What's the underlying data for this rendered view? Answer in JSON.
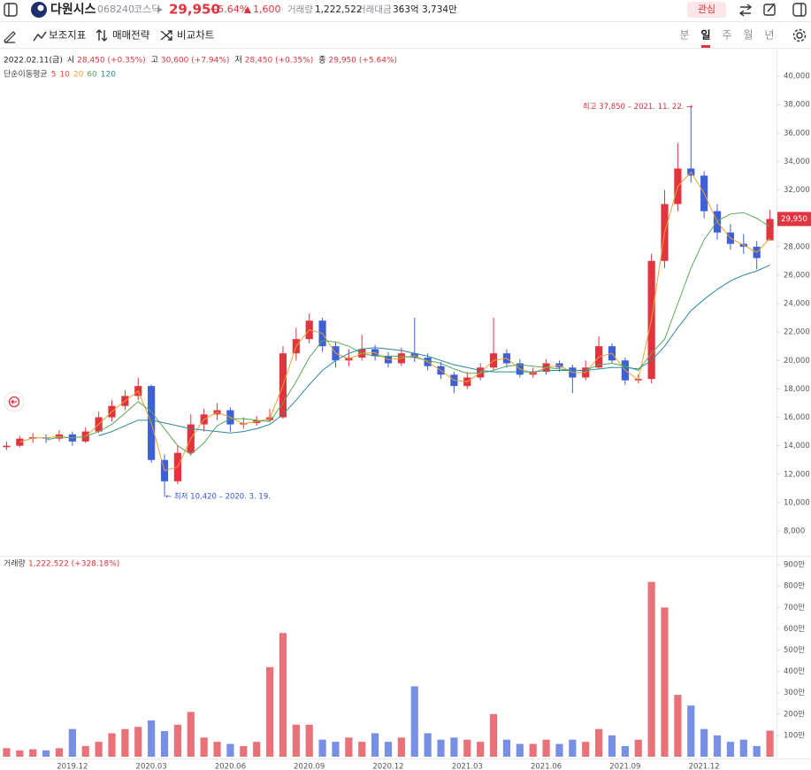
{
  "header": {
    "name": "다원시스",
    "code": "068240",
    "market": "코스닥",
    "price": "29,950",
    "change_pct": "+5.64%",
    "change": "1,600",
    "volume_label": "거래량",
    "volume": "1,222,522",
    "amount_label": "거래대금",
    "amount": "363억 3,734만",
    "watch": "관심"
  },
  "toolbar": {
    "tools": [
      "보조지표",
      "매매전략",
      "비교차트"
    ],
    "periods": [
      "분",
      "일",
      "주",
      "월",
      "년"
    ],
    "active_period": 1
  },
  "chart_data": {
    "type": "candlestick",
    "date": "2022.02.11(금)",
    "ohlc_info": [
      {
        "label": "시",
        "value": "28,450 (+0.35%)"
      },
      {
        "label": "고",
        "value": "30,600 (+7.94%)"
      },
      {
        "label": "저",
        "value": "28,450 (+0.35%)"
      },
      {
        "label": "종",
        "value": "29,950 (+5.64%)"
      }
    ],
    "up_color": "#e0353f",
    "down_color": "#3d5fd8",
    "categories": [
      null,
      null,
      null,
      null,
      null,
      "2019.12",
      null,
      null,
      null,
      null,
      null,
      "2020.03",
      null,
      null,
      null,
      null,
      null,
      "2020.06",
      null,
      null,
      null,
      null,
      null,
      "2020.09",
      null,
      null,
      null,
      null,
      null,
      "2020.12",
      null,
      null,
      null,
      null,
      null,
      "2021.03",
      null,
      null,
      null,
      null,
      null,
      "2021.06",
      null,
      null,
      null,
      null,
      null,
      "2021.09",
      null,
      null,
      null,
      null,
      null,
      "2021.12",
      null,
      null,
      null,
      null,
      null
    ],
    "ohlc": [
      [
        13900,
        14300,
        13700,
        14000
      ],
      [
        14000,
        14700,
        13900,
        14500
      ],
      [
        14500,
        14900,
        14200,
        14600
      ],
      [
        14600,
        14800,
        14200,
        14500
      ],
      [
        14500,
        15100,
        14300,
        14800
      ],
      [
        14800,
        15000,
        14000,
        14300
      ],
      [
        14300,
        15300,
        14200,
        15000
      ],
      [
        15000,
        16400,
        14900,
        16000
      ],
      [
        16000,
        17200,
        15700,
        16800
      ],
      [
        16800,
        17900,
        16500,
        17500
      ],
      [
        17500,
        18800,
        17200,
        18200
      ],
      [
        18200,
        18300,
        12800,
        13000
      ],
      [
        13000,
        13400,
        10420,
        11500
      ],
      [
        11500,
        14000,
        11300,
        13500
      ],
      [
        13500,
        16200,
        13300,
        15500
      ],
      [
        15500,
        16600,
        15000,
        16200
      ],
      [
        16200,
        17000,
        15800,
        16500
      ],
      [
        16500,
        16700,
        15000,
        15500
      ],
      [
        15500,
        16000,
        15200,
        15600
      ],
      [
        15600,
        16100,
        15400,
        15800
      ],
      [
        15800,
        16600,
        15700,
        16000
      ],
      [
        16000,
        21000,
        15900,
        20500
      ],
      [
        20500,
        22300,
        20000,
        21500
      ],
      [
        21500,
        23300,
        21200,
        22800
      ],
      [
        22800,
        23000,
        20600,
        21000
      ],
      [
        21000,
        21300,
        19500,
        20000
      ],
      [
        20000,
        20800,
        19600,
        20200
      ],
      [
        20200,
        21800,
        20000,
        20800
      ],
      [
        20800,
        21100,
        20000,
        20300
      ],
      [
        20300,
        20600,
        19500,
        19800
      ],
      [
        19800,
        20900,
        19600,
        20500
      ],
      [
        20500,
        23000,
        19900,
        20200
      ],
      [
        20200,
        20500,
        19300,
        19600
      ],
      [
        19600,
        19900,
        18700,
        19000
      ],
      [
        19000,
        19200,
        17700,
        18200
      ],
      [
        18200,
        19200,
        18000,
        18800
      ],
      [
        18800,
        19800,
        18600,
        19500
      ],
      [
        19500,
        23000,
        19300,
        20500
      ],
      [
        20500,
        20800,
        19500,
        19800
      ],
      [
        19800,
        20100,
        18800,
        19000
      ],
      [
        19000,
        19500,
        18800,
        19200
      ],
      [
        19200,
        20100,
        19000,
        19800
      ],
      [
        19800,
        20000,
        19200,
        19500
      ],
      [
        19500,
        19700,
        17700,
        18800
      ],
      [
        18800,
        20000,
        18600,
        19500
      ],
      [
        19500,
        21700,
        19400,
        21000
      ],
      [
        21000,
        21200,
        19800,
        20000
      ],
      [
        20000,
        20200,
        18300,
        18600
      ],
      [
        18600,
        19000,
        18400,
        18700
      ],
      [
        18700,
        27500,
        18400,
        27000
      ],
      [
        27000,
        32000,
        26500,
        31000
      ],
      [
        31000,
        35300,
        30500,
        33500
      ],
      [
        33500,
        37850,
        32500,
        33000
      ],
      [
        33000,
        33300,
        30000,
        30500
      ],
      [
        30500,
        31000,
        28500,
        29000
      ],
      [
        29000,
        29600,
        27800,
        28200
      ],
      [
        28200,
        28900,
        27500,
        28000
      ],
      [
        28000,
        28400,
        26400,
        27200
      ],
      [
        28450,
        30600,
        28450,
        29950
      ]
    ],
    "ma_label": "단순이동평균",
    "ma_legend_extra": [
      {
        "name": "5",
        "color": "#e53935"
      },
      {
        "name": "10",
        "color": "#f4511e"
      }
    ],
    "ma_series": [
      {
        "name": "20",
        "color": "#f0a030",
        "values": [
          null,
          14250,
          14550,
          14550,
          14650,
          14550,
          14650,
          15500,
          16400,
          17150,
          17850,
          15600,
          12250,
          12500,
          14500,
          15850,
          16350,
          16000,
          15550,
          15700,
          15900,
          18250,
          21000,
          22150,
          21900,
          20500,
          20100,
          20500,
          20550,
          20050,
          20150,
          20350,
          19900,
          19300,
          18600,
          18500,
          19150,
          20000,
          20150,
          19400,
          19100,
          19500,
          19650,
          19150,
          19150,
          20250,
          20500,
          19300,
          18650,
          22850,
          29000,
          32250,
          33250,
          31750,
          29750,
          28600,
          28100,
          27600,
          28600
        ]
      },
      {
        "name": "60",
        "color": "#5aa85a",
        "values": [
          null,
          null,
          null,
          14400,
          14600,
          14550,
          14650,
          15000,
          15500,
          16300,
          17100,
          16400,
          15200,
          14000,
          13400,
          14200,
          15400,
          15900,
          15900,
          15800,
          15700,
          17000,
          18500,
          20200,
          21400,
          21300,
          21000,
          20500,
          20300,
          20300,
          20300,
          20200,
          20000,
          19800,
          19400,
          19100,
          19100,
          19300,
          19600,
          19700,
          19600,
          19500,
          19400,
          19300,
          19300,
          19700,
          19800,
          19600,
          19300,
          20500,
          21500,
          24000,
          26500,
          28500,
          29800,
          30300,
          30400,
          30000,
          29400
        ]
      },
      {
        "name": "120",
        "color": "#2a8a9a",
        "values": [
          null,
          null,
          null,
          null,
          null,
          null,
          null,
          14700,
          15000,
          15400,
          15800,
          15800,
          15600,
          15400,
          15200,
          15100,
          15000,
          14900,
          15000,
          15200,
          15500,
          16200,
          17200,
          18300,
          19300,
          20000,
          20500,
          20800,
          20900,
          20800,
          20700,
          20500,
          20300,
          20000,
          19700,
          19500,
          19300,
          19200,
          19200,
          19200,
          19200,
          19300,
          19300,
          19300,
          19300,
          19400,
          19500,
          19500,
          19400,
          20000,
          21000,
          22300,
          23500,
          24300,
          25000,
          25600,
          26000,
          26300,
          26700
        ]
      }
    ],
    "ylim": [
      6257,
      41930
    ],
    "yticks": [
      {
        "value": 8000,
        "label": "8,000"
      },
      {
        "value": 10000,
        "label": "10,000"
      },
      {
        "value": 12000,
        "label": "12,000"
      },
      {
        "value": 14000,
        "label": "14,000"
      },
      {
        "value": 16000,
        "label": "16,000"
      },
      {
        "value": 18000,
        "label": "18,000"
      },
      {
        "value": 20000,
        "label": "20,000"
      },
      {
        "value": 22000,
        "label": "22,000"
      },
      {
        "value": 24000,
        "label": "24,000"
      },
      {
        "value": 26000,
        "label": "26,000"
      },
      {
        "value": 28000,
        "label": "28,000"
      },
      {
        "value": 30000,
        "label": "30,000"
      },
      {
        "value": 32000,
        "label": "32,000"
      },
      {
        "value": 34000,
        "label": "34,000"
      },
      {
        "value": 36000,
        "label": "36,000"
      },
      {
        "value": 38000,
        "label": "38,000"
      },
      {
        "value": 40000,
        "label": "40,000"
      }
    ],
    "grid": false,
    "last": {
      "value": 29950,
      "label": "29,950"
    },
    "high_note": {
      "value": 37850,
      "label": "최고 37,850 – 2021. 11. 22. →"
    },
    "low_note": {
      "value": 10420,
      "label": "← 최저 10,420 – 2020. 3. 19."
    },
    "volume": {
      "label": "거래량",
      "value_label": "1,222,522 (+328.18%)",
      "values": [
        400000,
        300000,
        350000,
        300000,
        400000,
        1300000,
        500000,
        700000,
        1100000,
        1300000,
        1400000,
        1700000,
        1200000,
        1500000,
        2100000,
        900000,
        700000,
        600000,
        500000,
        700000,
        4200000,
        5800000,
        1500000,
        1500000,
        800000,
        700000,
        900000,
        700000,
        1100000,
        700000,
        900000,
        3300000,
        1100000,
        800000,
        900000,
        800000,
        700000,
        2000000,
        800000,
        600000,
        600000,
        800000,
        600000,
        800000,
        700000,
        1300000,
        1000000,
        500000,
        800000,
        8200000,
        7000000,
        2900000,
        2400000,
        1300000,
        1000000,
        700000,
        800000,
        500000,
        1222522
      ],
      "ylim": [
        0,
        9420000
      ],
      "yticks": [
        {
          "value": 1000000,
          "label": "100만"
        },
        {
          "value": 2000000,
          "label": "200만"
        },
        {
          "value": 3000000,
          "label": "300만"
        },
        {
          "value": 4000000,
          "label": "400만"
        },
        {
          "value": 5000000,
          "label": "500만"
        },
        {
          "value": 6000000,
          "label": "600만"
        },
        {
          "value": 7000000,
          "label": "700만"
        },
        {
          "value": 8000000,
          "label": "800만"
        },
        {
          "value": 9000000,
          "label": "900만"
        }
      ]
    }
  }
}
